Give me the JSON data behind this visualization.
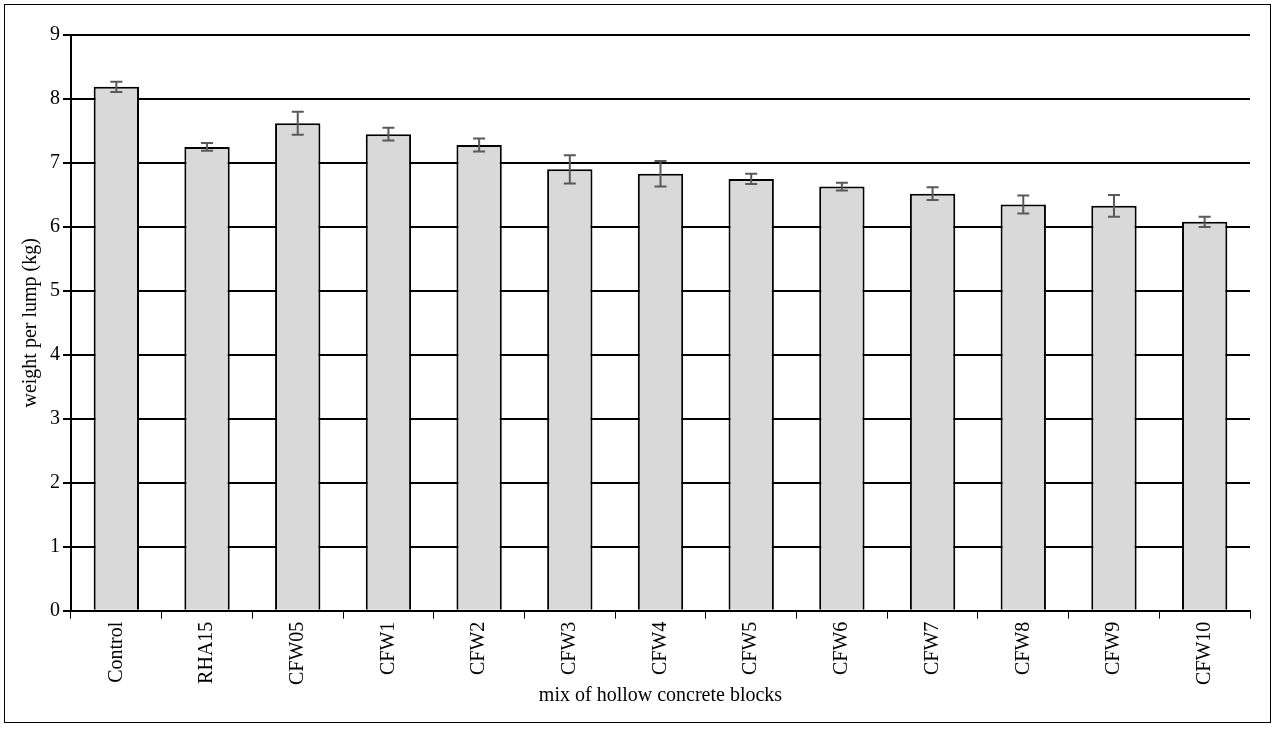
{
  "chart_data": {
    "type": "bar",
    "xlabel": "mix of hollow concrete blocks",
    "ylabel": "weight per lump (kg)",
    "categories": [
      "Control",
      "RHA15",
      "CFW05",
      "CFW1",
      "CFW2",
      "CFW3",
      "CFW4",
      "CFW5",
      "CFW6",
      "CFW7",
      "CFW8",
      "CFW9",
      "CFW10"
    ],
    "values": [
      8.19,
      7.25,
      7.62,
      7.45,
      7.28,
      6.9,
      6.83,
      6.75,
      6.63,
      6.52,
      6.35,
      6.33,
      6.08
    ],
    "errors": [
      0.08,
      0.06,
      0.18,
      0.1,
      0.1,
      0.22,
      0.2,
      0.08,
      0.06,
      0.1,
      0.14,
      0.17,
      0.08
    ],
    "color": "#d9d9d9",
    "ylim": [
      0,
      9
    ],
    "yticks": [
      0,
      1,
      2,
      3,
      4,
      5,
      6,
      7,
      8,
      9
    ],
    "grid": "y",
    "legend": false
  }
}
